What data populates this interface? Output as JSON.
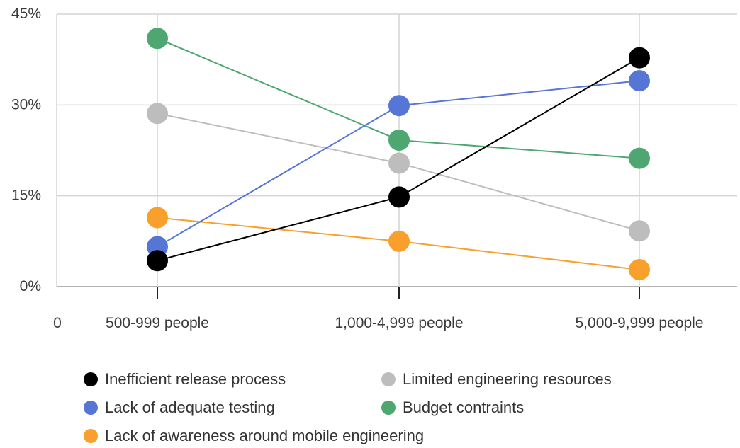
{
  "chart_data": {
    "type": "line",
    "categories": [
      "500-999 people",
      "1,000-4,999 people",
      "5,000-9,999 people"
    ],
    "x_origin_label": "0",
    "ylim": [
      0,
      45
    ],
    "yticks": [
      0,
      15,
      30,
      45
    ],
    "ytick_labels": [
      "0%",
      "15%",
      "30%",
      "45%"
    ],
    "grid": true,
    "legend_position": "bottom",
    "series": [
      {
        "name": "Inefficient release process",
        "color": "#000000",
        "values": [
          4.3,
          14.8,
          37.8
        ]
      },
      {
        "name": "Lack of adequate testing",
        "color": "#5676d6",
        "values": [
          6.6,
          29.9,
          34.0
        ]
      },
      {
        "name": "Lack of awareness around mobile engineering",
        "color": "#f9a02c",
        "values": [
          11.4,
          7.5,
          2.8
        ]
      },
      {
        "name": "Limited engineering resources",
        "color": "#bdbdbd",
        "values": [
          28.6,
          20.4,
          9.2
        ]
      },
      {
        "name": "Budget contraints",
        "color": "#4ea670",
        "values": [
          41.0,
          24.2,
          21.2
        ]
      }
    ]
  }
}
